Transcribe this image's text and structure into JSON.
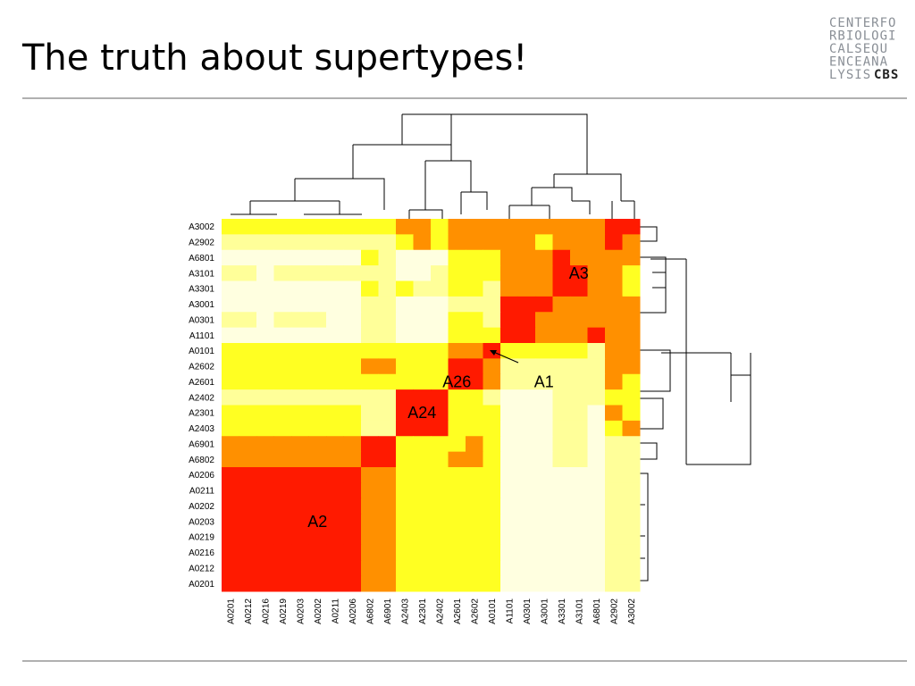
{
  "chart_data": {
    "type": "heatmap",
    "title": "The truth about supertypes!",
    "logo": {
      "lines": [
        "CENTERFO",
        "RBIOLOGI",
        "CALSEQU",
        "ENCEANA",
        "LYSIS"
      ],
      "bold": "CBS"
    },
    "rows": [
      "A3002",
      "A2902",
      "A6801",
      "A3101",
      "A3301",
      "A3001",
      "A0301",
      "A1101",
      "A0101",
      "A2602",
      "A2601",
      "A2402",
      "A2301",
      "A2403",
      "A6901",
      "A6802",
      "A0206",
      "A0211",
      "A0202",
      "A0203",
      "A0219",
      "A0216",
      "A0212",
      "A0201"
    ],
    "columns": [
      "A0201",
      "A0212",
      "A0216",
      "A0219",
      "A0203",
      "A0202",
      "A0211",
      "A0206",
      "A6802",
      "A6901",
      "A2403",
      "A2301",
      "A2402",
      "A2601",
      "A2602",
      "A0101",
      "A1101",
      "A0301",
      "A3001",
      "A3301",
      "A3101",
      "A6801",
      "A2902",
      "A3002"
    ],
    "colors": [
      "#ffffe0",
      "#ffff99",
      "#ffff22",
      "#ff9000",
      "#ff1a00"
    ],
    "values": [
      [
        2,
        2,
        2,
        2,
        2,
        2,
        2,
        2,
        2,
        2,
        3,
        3,
        2,
        3,
        3,
        3,
        3,
        3,
        3,
        3,
        3,
        3,
        4,
        4
      ],
      [
        1,
        1,
        1,
        1,
        1,
        1,
        1,
        1,
        1,
        1,
        2,
        3,
        2,
        3,
        3,
        3,
        3,
        3,
        2,
        3,
        3,
        3,
        4,
        3
      ],
      [
        0,
        0,
        0,
        0,
        0,
        0,
        0,
        0,
        2,
        1,
        0,
        0,
        0,
        2,
        2,
        2,
        3,
        3,
        3,
        4,
        3,
        3,
        3,
        3
      ],
      [
        1,
        1,
        0,
        1,
        1,
        1,
        1,
        1,
        1,
        1,
        0,
        0,
        1,
        2,
        2,
        2,
        3,
        3,
        3,
        4,
        4,
        3,
        3,
        2
      ],
      [
        0,
        0,
        0,
        0,
        0,
        0,
        0,
        0,
        2,
        1,
        2,
        1,
        1,
        2,
        2,
        1,
        3,
        3,
        3,
        4,
        4,
        3,
        3,
        2
      ],
      [
        0,
        0,
        0,
        0,
        0,
        0,
        0,
        0,
        1,
        1,
        0,
        0,
        0,
        1,
        1,
        1,
        4,
        4,
        4,
        3,
        3,
        3,
        3,
        3
      ],
      [
        1,
        1,
        0,
        1,
        1,
        1,
        0,
        0,
        1,
        1,
        0,
        0,
        0,
        2,
        2,
        1,
        4,
        4,
        3,
        3,
        3,
        3,
        3,
        3
      ],
      [
        0,
        0,
        0,
        0,
        0,
        0,
        0,
        0,
        1,
        1,
        0,
        0,
        0,
        2,
        2,
        2,
        4,
        4,
        3,
        3,
        3,
        4,
        3,
        3
      ],
      [
        2,
        2,
        2,
        2,
        2,
        2,
        2,
        2,
        2,
        2,
        2,
        2,
        2,
        3,
        3,
        4,
        2,
        2,
        2,
        2,
        2,
        1,
        3,
        3
      ],
      [
        2,
        2,
        2,
        2,
        2,
        2,
        2,
        2,
        3,
        3,
        2,
        2,
        2,
        4,
        4,
        3,
        1,
        1,
        1,
        1,
        1,
        1,
        3,
        3
      ],
      [
        2,
        2,
        2,
        2,
        2,
        2,
        2,
        2,
        2,
        2,
        2,
        2,
        2,
        4,
        4,
        3,
        1,
        1,
        1,
        1,
        1,
        1,
        3,
        2
      ],
      [
        1,
        1,
        1,
        1,
        1,
        1,
        1,
        1,
        1,
        1,
        4,
        4,
        4,
        2,
        2,
        1,
        0,
        0,
        0,
        1,
        1,
        1,
        2,
        2
      ],
      [
        2,
        2,
        2,
        2,
        2,
        2,
        2,
        2,
        1,
        1,
        4,
        4,
        4,
        2,
        2,
        2,
        0,
        0,
        0,
        1,
        1,
        0,
        3,
        2
      ],
      [
        2,
        2,
        2,
        2,
        2,
        2,
        2,
        2,
        1,
        1,
        4,
        4,
        4,
        2,
        2,
        2,
        0,
        0,
        0,
        1,
        1,
        0,
        2,
        3
      ],
      [
        3,
        3,
        3,
        3,
        3,
        3,
        3,
        3,
        4,
        4,
        2,
        2,
        2,
        2,
        3,
        2,
        0,
        0,
        0,
        1,
        1,
        0,
        1,
        1
      ],
      [
        3,
        3,
        3,
        3,
        3,
        3,
        3,
        3,
        4,
        4,
        2,
        2,
        2,
        3,
        3,
        2,
        0,
        0,
        0,
        1,
        1,
        0,
        1,
        1
      ],
      [
        4,
        4,
        4,
        4,
        4,
        4,
        4,
        4,
        3,
        3,
        2,
        2,
        2,
        2,
        2,
        2,
        0,
        0,
        0,
        0,
        0,
        0,
        1,
        1
      ],
      [
        4,
        4,
        4,
        4,
        4,
        4,
        4,
        4,
        3,
        3,
        2,
        2,
        2,
        2,
        2,
        2,
        0,
        0,
        0,
        0,
        0,
        0,
        1,
        1
      ],
      [
        4,
        4,
        4,
        4,
        4,
        4,
        4,
        4,
        3,
        3,
        2,
        2,
        2,
        2,
        2,
        2,
        0,
        0,
        0,
        0,
        0,
        0,
        1,
        1
      ],
      [
        4,
        4,
        4,
        4,
        4,
        4,
        4,
        4,
        3,
        3,
        2,
        2,
        2,
        2,
        2,
        2,
        0,
        0,
        0,
        0,
        0,
        0,
        1,
        1
      ],
      [
        4,
        4,
        4,
        4,
        4,
        4,
        4,
        4,
        3,
        3,
        2,
        2,
        2,
        2,
        2,
        2,
        0,
        0,
        0,
        0,
        0,
        0,
        1,
        1
      ],
      [
        4,
        4,
        4,
        4,
        4,
        4,
        4,
        4,
        3,
        3,
        2,
        2,
        2,
        2,
        2,
        2,
        0,
        0,
        0,
        0,
        0,
        0,
        1,
        1
      ],
      [
        4,
        4,
        4,
        4,
        4,
        4,
        4,
        4,
        3,
        3,
        2,
        2,
        2,
        2,
        2,
        2,
        0,
        0,
        0,
        0,
        0,
        0,
        1,
        1
      ],
      [
        4,
        4,
        4,
        4,
        4,
        4,
        4,
        4,
        3,
        3,
        2,
        2,
        2,
        2,
        2,
        2,
        0,
        0,
        0,
        0,
        0,
        0,
        1,
        1
      ]
    ],
    "annotations": [
      {
        "text": "A3",
        "row": 3,
        "col": 20
      },
      {
        "text": "A26",
        "row": 10,
        "col": 13
      },
      {
        "text": "A1",
        "row": 10,
        "col": 18
      },
      {
        "text": "A24",
        "row": 12,
        "col": 11
      },
      {
        "text": "A2",
        "row": 19,
        "col": 5
      }
    ]
  }
}
